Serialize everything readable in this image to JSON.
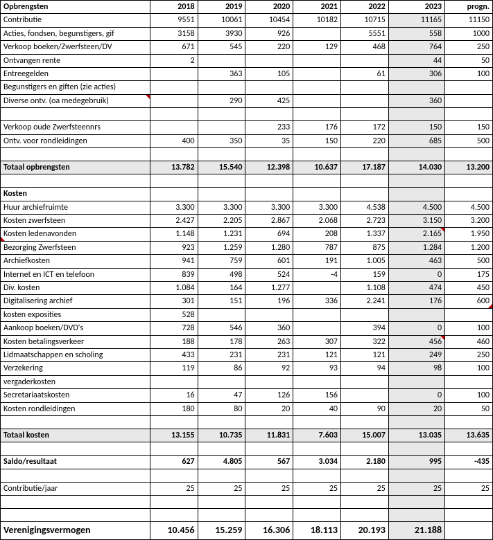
{
  "columns": [
    "Opbrengsten",
    "2018",
    "2019",
    "2020",
    "2021",
    "2022",
    "2023",
    "progn."
  ],
  "rows": [
    {
      "kind": "data",
      "cells": [
        "Contributie",
        "9551",
        "10061",
        "10454",
        "10182",
        "10715",
        "11165",
        "11150"
      ]
    },
    {
      "kind": "data",
      "cells": [
        "Acties, fondsen, begunstigers, gif",
        "3158",
        "3930",
        "926",
        "",
        "5551",
        "558",
        "1000"
      ]
    },
    {
      "kind": "data",
      "cells": [
        "Verkoop boeken/Zwerfsteen/DV",
        "671",
        "545",
        "220",
        "129",
        "468",
        "764",
        "250"
      ]
    },
    {
      "kind": "data",
      "cells": [
        "Ontvangen rente",
        "2",
        "",
        "",
        "",
        "",
        "44",
        "50"
      ]
    },
    {
      "kind": "data",
      "cells": [
        "Entreegelden",
        "",
        "363",
        "105",
        "",
        "61",
        "306",
        "100"
      ]
    },
    {
      "kind": "data",
      "cells": [
        "Begunstigers en giften (zie acties)",
        "",
        "",
        "",
        "",
        "",
        "",
        ""
      ]
    },
    {
      "kind": "data",
      "cells": [
        "Diverse ontv. (oa medegebruik)",
        "",
        "290",
        "425",
        "",
        "",
        "360",
        ""
      ],
      "marks": {
        "0": "mark"
      }
    },
    {
      "kind": "spacer"
    },
    {
      "kind": "data",
      "cells": [
        "Verkoop oude Zwerfsteennrs",
        "",
        "",
        "233",
        "176",
        "172",
        "150",
        "150"
      ]
    },
    {
      "kind": "data",
      "cells": [
        "Ontv. voor rondleidingen",
        "400",
        "350",
        "35",
        "150",
        "220",
        "685",
        "500"
      ]
    },
    {
      "kind": "spacer"
    },
    {
      "kind": "total",
      "cells": [
        "Totaal opbrengsten",
        "13.782",
        "15.540",
        "12.398",
        "10.637",
        "17.187",
        "14.030",
        "13.200"
      ]
    },
    {
      "kind": "spacer"
    },
    {
      "kind": "section",
      "cells": [
        "Kosten",
        "",
        "",
        "",
        "",
        "",
        "",
        ""
      ]
    },
    {
      "kind": "data",
      "cells": [
        "Huur archiefruimte",
        "3.300",
        "3.300",
        "3.300",
        "3.300",
        "4.538",
        "4.500",
        "4.500"
      ]
    },
    {
      "kind": "data",
      "cells": [
        "Kosten zwerfsteen",
        "2.427",
        "2.205",
        "2.867",
        "2.068",
        "2.723",
        "3.150",
        "3.200"
      ]
    },
    {
      "kind": "data",
      "cells": [
        "Kosten ledenavonden",
        "1.148",
        "1.231",
        "694",
        "208",
        "1.337",
        "2.165",
        "1.950"
      ],
      "marks": {
        "0": "mark-bl",
        "6": "mark"
      }
    },
    {
      "kind": "data",
      "cells": [
        "Bezorging Zwerfsteen",
        "923",
        "1.259",
        "1.280",
        "787",
        "875",
        "1.284",
        "1.200"
      ]
    },
    {
      "kind": "data",
      "cells": [
        "Archiefkosten",
        "941",
        "759",
        "601",
        "191",
        "1.005",
        "463",
        "500"
      ]
    },
    {
      "kind": "data",
      "cells": [
        "Internet en ICT en telefoon",
        "839",
        "498",
        "524",
        "-4",
        "159",
        "0",
        "175"
      ]
    },
    {
      "kind": "data",
      "cells": [
        "Div. kosten",
        "1.084",
        "164",
        "1.277",
        "",
        "1.108",
        "474",
        "450"
      ]
    },
    {
      "kind": "data",
      "cells": [
        "Digitalisering archief",
        "301",
        "151",
        "196",
        "336",
        "2.241",
        "176",
        "600"
      ],
      "marks": {
        "7": "mark-br"
      }
    },
    {
      "kind": "data",
      "cells": [
        "kosten exposities",
        "528",
        "",
        "",
        "",
        "",
        "",
        ""
      ]
    },
    {
      "kind": "data",
      "cells": [
        "Aankoop boeken/DVD's",
        "728",
        "546",
        "360",
        "",
        "394",
        "0",
        "100"
      ]
    },
    {
      "kind": "data",
      "cells": [
        "Kosten betalingsverkeer",
        "188",
        "178",
        "263",
        "307",
        "322",
        "456",
        "460"
      ],
      "marks": {
        "6": "mark"
      }
    },
    {
      "kind": "data",
      "cells": [
        "Lidmaatschappen en scholing",
        "433",
        "231",
        "231",
        "121",
        "121",
        "249",
        "250"
      ]
    },
    {
      "kind": "data",
      "cells": [
        "Verzekering",
        "119",
        "86",
        "92",
        "93",
        "94",
        "98",
        "100"
      ]
    },
    {
      "kind": "data",
      "cells": [
        "vergaderkosten",
        "",
        "",
        "",
        "",
        "",
        "",
        ""
      ]
    },
    {
      "kind": "data",
      "cells": [
        "Secretariaatskosten",
        "16",
        "47",
        "126",
        "156",
        "",
        "0",
        "100"
      ]
    },
    {
      "kind": "data",
      "cells": [
        "Kosten rondleidingen",
        "180",
        "80",
        "20",
        "40",
        "90",
        "20",
        "50"
      ]
    },
    {
      "kind": "spacer"
    },
    {
      "kind": "total",
      "cells": [
        "Totaal kosten",
        "13.155",
        "10.735",
        "11.831",
        "7.603",
        "15.007",
        "13.035",
        "13.635"
      ]
    },
    {
      "kind": "spacer"
    },
    {
      "kind": "saldo",
      "cells": [
        "Saldo/resultaat",
        "627",
        "4.805",
        "567",
        "3.034",
        "2.180",
        "995",
        "-435"
      ]
    },
    {
      "kind": "spacer"
    },
    {
      "kind": "data",
      "cells": [
        "Contributie/jaar",
        "25",
        "25",
        "25",
        "25",
        "25",
        "25",
        "25"
      ]
    },
    {
      "kind": "spacer"
    },
    {
      "kind": "spacer"
    },
    {
      "kind": "vermogen",
      "cells": [
        "Verenigingsvermogen",
        "10.456",
        "15.259",
        "16.306",
        "18.113",
        "20.193",
        "21.188",
        ""
      ]
    }
  ],
  "style": {
    "col2023_bg": "#e8e8e8",
    "total_bg": "#e8e8e8",
    "mark_color": "#c00000"
  }
}
